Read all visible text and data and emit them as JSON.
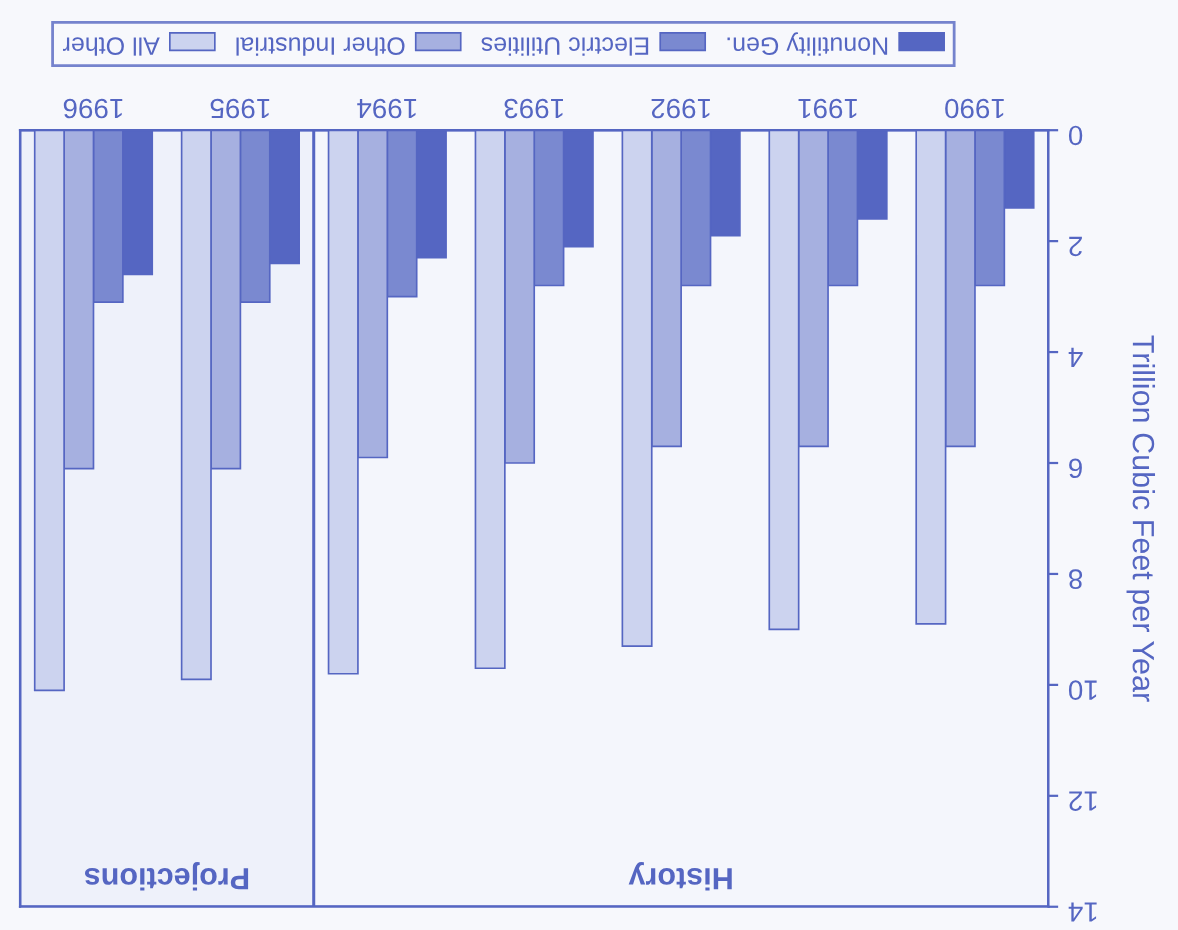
{
  "chart_data": {
    "type": "bar",
    "categories": [
      "1996",
      "1995",
      "1994",
      "1993",
      "1992",
      "1991",
      "1990"
    ],
    "series": [
      {
        "name": "Nonutility Gen.",
        "color": "#5566c2",
        "values": [
          2.6,
          2.4,
          2.3,
          2.1,
          1.9,
          1.6,
          1.4
        ]
      },
      {
        "name": "Electric Utilities",
        "color": "#7a89d0",
        "values": [
          3.1,
          3.1,
          3.0,
          2.8,
          2.8,
          2.8,
          2.8
        ]
      },
      {
        "name": "Other Industrial",
        "color": "#a6b0e0",
        "values": [
          6.1,
          6.1,
          5.9,
          6.0,
          5.7,
          5.7,
          5.7
        ]
      },
      {
        "name": "All Other",
        "color": "#ccd3ef",
        "values": [
          10.1,
          9.9,
          9.8,
          9.7,
          9.3,
          9.0,
          8.9
        ]
      }
    ],
    "ylabel": "Trillion Cubic Feet per Year",
    "ylim": [
      14,
      0
    ],
    "yticks": [
      0,
      2,
      4,
      6,
      8,
      10,
      12,
      14
    ],
    "bands": [
      {
        "axis": "x",
        "from": "1996",
        "to": "1995",
        "label": "Projections",
        "color": "#eef1fa"
      },
      {
        "axis": "x",
        "from": "1994",
        "to": "1990",
        "label": "History",
        "color": "#f4f6fc"
      }
    ],
    "legend": "top",
    "grid": false
  }
}
